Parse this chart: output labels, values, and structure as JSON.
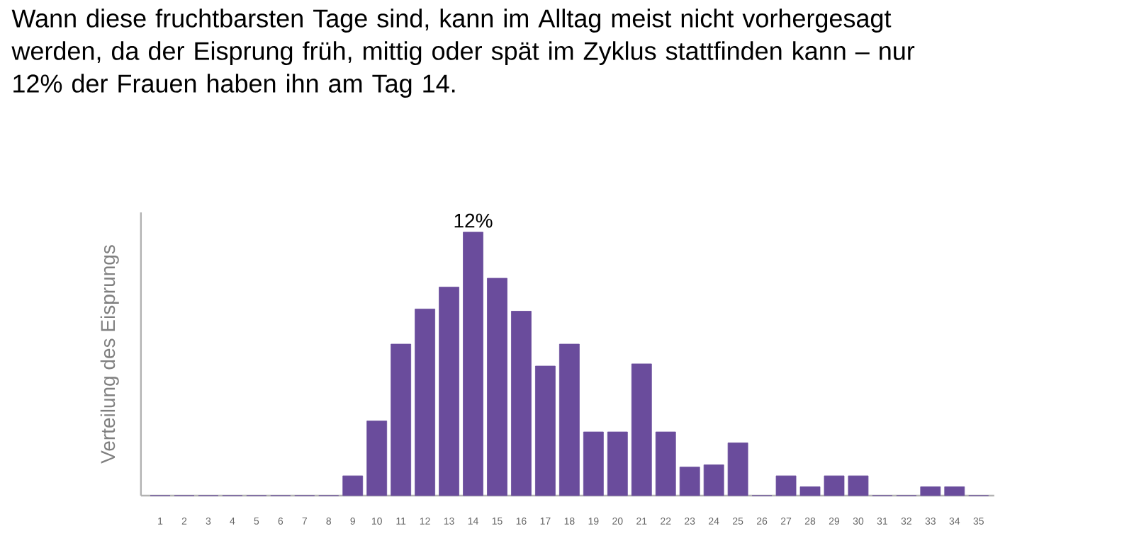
{
  "chart_data": {
    "type": "bar",
    "title": "Wann diese fruchtbarsten Tage sind, kann im Alltag meist nicht vorhergesagt werden, da der Eisprung früh, mittig oder spät im Zyklus stattfinden kann – nur 12% der Frauen haben ihn am Tag 14.",
    "ylabel": "Verteilung des Eisprungs",
    "categories": [
      "1",
      "2",
      "3",
      "4",
      "5",
      "6",
      "7",
      "8",
      "9",
      "10",
      "11",
      "12",
      "13",
      "14",
      "15",
      "16",
      "17",
      "18",
      "19",
      "20",
      "21",
      "22",
      "23",
      "24",
      "25",
      "26",
      "27",
      "28",
      "29",
      "30",
      "31",
      "32",
      "33",
      "34",
      "35"
    ],
    "values": [
      0,
      0,
      0,
      0,
      0,
      0,
      0,
      0,
      0.9,
      3.4,
      6.9,
      8.5,
      9.5,
      12,
      9.9,
      8.4,
      5.9,
      6.9,
      2.9,
      2.9,
      6.0,
      2.9,
      1.3,
      1.4,
      2.4,
      0,
      0.9,
      0.4,
      0.9,
      0.9,
      0,
      0,
      0.4,
      0.4,
      0
    ],
    "value_labels": [
      null,
      null,
      null,
      null,
      null,
      null,
      null,
      null,
      null,
      null,
      null,
      null,
      null,
      "12%",
      null,
      null,
      null,
      null,
      null,
      null,
      null,
      null,
      null,
      null,
      null,
      null,
      null,
      null,
      null,
      null,
      null,
      null,
      null,
      null,
      null
    ],
    "color": "#6a4c9c",
    "tick_labels": "x"
  }
}
